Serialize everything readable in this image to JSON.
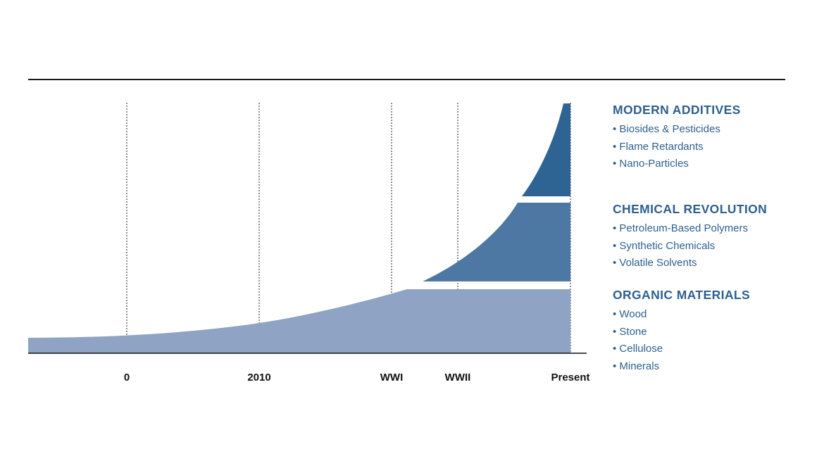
{
  "chart_data": {
    "type": "area",
    "x": [
      "0",
      "2010",
      "WWI",
      "WWII",
      "Present"
    ],
    "series": [
      {
        "name": "ORGANIC MATERIALS",
        "items": [
          "Wood",
          "Stone",
          "Cellulose",
          "Minerals"
        ],
        "color": "#8fa4c4"
      },
      {
        "name": "CHEMICAL REVOLUTION",
        "items": [
          "Petroleum-Based Polymers",
          "Synthetic Chemicals",
          "Volatile Solvents"
        ],
        "color": "#4d78a4"
      },
      {
        "name": "MODERN ADDITIVES",
        "items": [
          "Biosides & Pesticides",
          "Flame Retardants",
          "Nano-Particles"
        ],
        "color": "#2e6494"
      }
    ],
    "grid": "vertical dotted lines at each x tick",
    "legend": "right"
  }
}
